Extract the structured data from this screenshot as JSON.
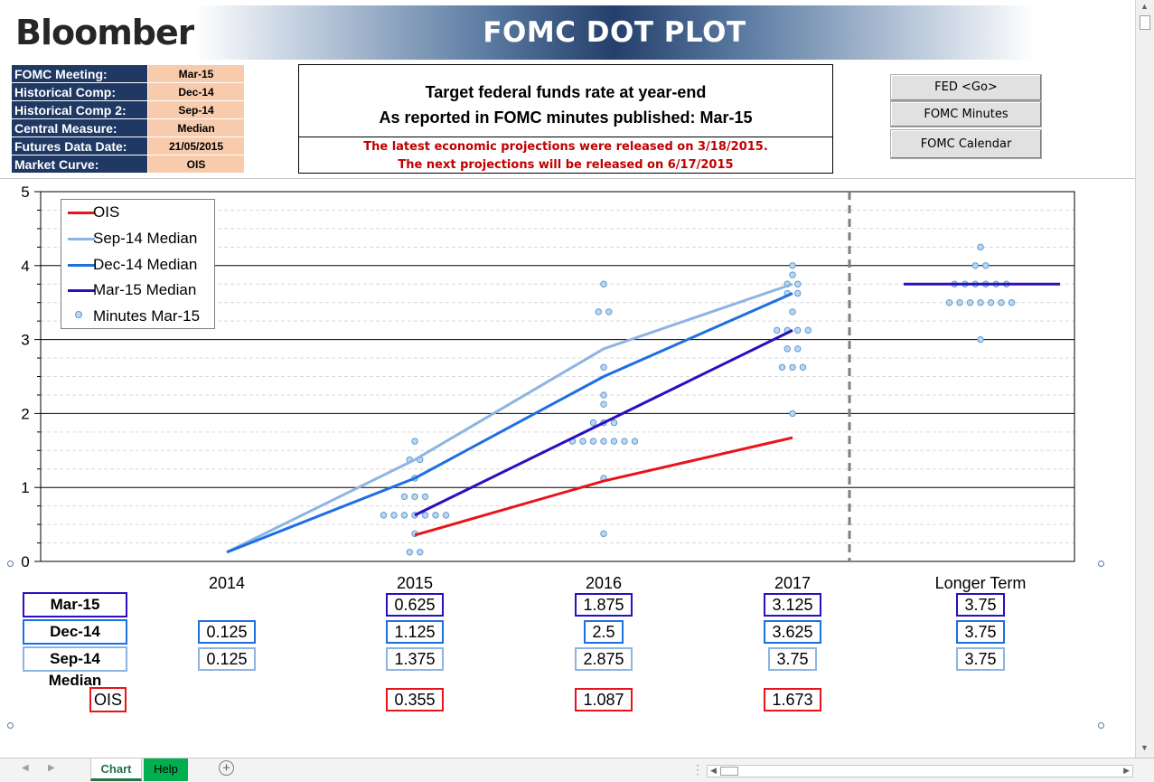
{
  "header": {
    "brand": "Bloomberg",
    "title": "FOMC DOT PLOT"
  },
  "info": [
    {
      "key": "FOMC Meeting:",
      "value": "Mar-15"
    },
    {
      "key": "Historical Comp:",
      "value": "Dec-14"
    },
    {
      "key": "Historical Comp 2:",
      "value": "Sep-14"
    },
    {
      "key": "Central Measure:",
      "value": "Median"
    },
    {
      "key": "Futures Data Date:",
      "value": "21/05/2015"
    },
    {
      "key": "Market Curve:",
      "value": "OIS"
    }
  ],
  "target": {
    "line1": "Target federal funds rate at year-end",
    "line2": "As reported in FOMC minutes published: Mar-15",
    "note1": "The latest economic projections were released on 3/18/2015.",
    "note2": "The next projections will be released on 6/17/2015"
  },
  "buttons": {
    "fed_go": "FED <Go>",
    "fomc_minutes": "FOMC Minutes",
    "fomc_calendar": "FOMC Calendar"
  },
  "colors": {
    "ois": "#e8141a",
    "sep14": "#8db4e2",
    "dec14": "#1e6fe0",
    "mar15": "#2a0ec0",
    "dots": "#5b9bd5",
    "tab_help": "#00b050"
  },
  "chart_data": {
    "type": "line",
    "categories": [
      "2014",
      "2015",
      "2016",
      "2017",
      "Longer Term"
    ],
    "ylim": [
      0,
      5
    ],
    "yticks": [
      "0",
      "1",
      "2",
      "3",
      "4",
      "5"
    ],
    "series": [
      {
        "name": "OIS",
        "values": [
          null,
          0.355,
          1.087,
          1.673,
          null
        ]
      },
      {
        "name": "Sep-14 Median",
        "values": [
          0.125,
          1.375,
          2.875,
          3.75,
          3.75
        ]
      },
      {
        "name": "Dec-14 Median",
        "values": [
          0.125,
          1.125,
          2.5,
          3.625,
          3.75
        ]
      },
      {
        "name": "Mar-15 Median",
        "values": [
          null,
          0.625,
          1.875,
          3.125,
          3.75
        ]
      }
    ],
    "dots_series_name": "Minutes Mar-15",
    "dots": {
      "2015": [
        0.125,
        0.125,
        0.375,
        0.625,
        0.625,
        0.625,
        0.625,
        0.625,
        0.625,
        0.625,
        0.875,
        0.875,
        0.875,
        1.125,
        1.375,
        1.375,
        1.625
      ],
      "2016": [
        0.375,
        1.125,
        1.625,
        1.625,
        1.625,
        1.625,
        1.625,
        1.625,
        1.625,
        1.875,
        1.875,
        1.875,
        2.125,
        2.25,
        2.625,
        3.375,
        3.375,
        3.75
      ],
      "2017": [
        2.0,
        2.625,
        2.625,
        2.625,
        2.875,
        2.875,
        3.125,
        3.125,
        3.125,
        3.125,
        3.375,
        3.625,
        3.625,
        3.75,
        3.75,
        3.875,
        4.0
      ],
      "Longer Term": [
        3.0,
        3.5,
        3.5,
        3.5,
        3.5,
        3.5,
        3.5,
        3.5,
        3.75,
        3.75,
        3.75,
        3.75,
        3.75,
        3.75,
        4.0,
        4.0,
        4.25
      ]
    },
    "table": {
      "rows": [
        {
          "label": "Mar-15 Median",
          "values": [
            "",
            "0.625",
            "1.875",
            "3.125",
            "3.75"
          ]
        },
        {
          "label": "Dec-14 Median",
          "values": [
            "0.125",
            "1.125",
            "2.5",
            "3.625",
            "3.75"
          ]
        },
        {
          "label": "Sep-14 Median",
          "values": [
            "0.125",
            "1.375",
            "2.875",
            "3.75",
            "3.75"
          ]
        },
        {
          "label": "OIS",
          "values": [
            "",
            "0.355",
            "1.087",
            "1.673",
            ""
          ]
        }
      ]
    },
    "legend_position": "top-left",
    "grid": true
  },
  "tabs": [
    {
      "label": "Chart"
    },
    {
      "label": "Help"
    }
  ]
}
